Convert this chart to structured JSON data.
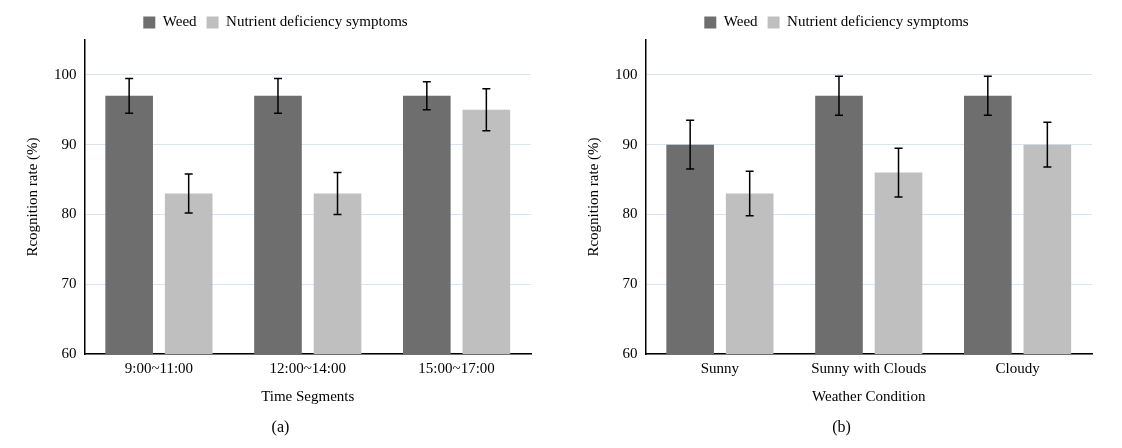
{
  "chart_data": [
    {
      "type": "bar",
      "xlabel": "Time Segments",
      "ylabel": "Rcognition rate (%)",
      "categories": [
        "9:00~11:00",
        "12:00~14:00",
        "15:00~17:00"
      ],
      "series": [
        {
          "name": "Weed",
          "color": "#6e6e6e",
          "values": [
            97,
            97,
            97
          ],
          "errors": [
            2.5,
            2.5,
            2
          ]
        },
        {
          "name": "Nutrient deficiency symptoms",
          "color": "#bfbfbf",
          "values": [
            83,
            83,
            95
          ],
          "errors": [
            2.8,
            3,
            3
          ]
        }
      ],
      "ylim": [
        60,
        105
      ],
      "yticks": [
        60,
        70,
        80,
        90,
        100
      ],
      "grid": "y",
      "legend": "top",
      "annotations": [
        "(a)"
      ]
    },
    {
      "type": "bar",
      "xlabel": "Weather Condition",
      "ylabel": "Rcognition rate (%)",
      "categories": [
        "Sunny",
        "Sunny with Clouds",
        "Cloudy"
      ],
      "series": [
        {
          "name": "Weed",
          "color": "#6e6e6e",
          "values": [
            90,
            97,
            97
          ],
          "errors": [
            3.5,
            2.8,
            2.8
          ]
        },
        {
          "name": "Nutrient deficiency symptoms",
          "color": "#bfbfbf",
          "values": [
            83,
            86,
            90
          ],
          "errors": [
            3.2,
            3.5,
            3.2
          ]
        }
      ],
      "ylim": [
        60,
        105
      ],
      "yticks": [
        60,
        70,
        80,
        90,
        100
      ],
      "grid": "y",
      "legend": "top",
      "annotations": [
        "(b)"
      ]
    }
  ]
}
